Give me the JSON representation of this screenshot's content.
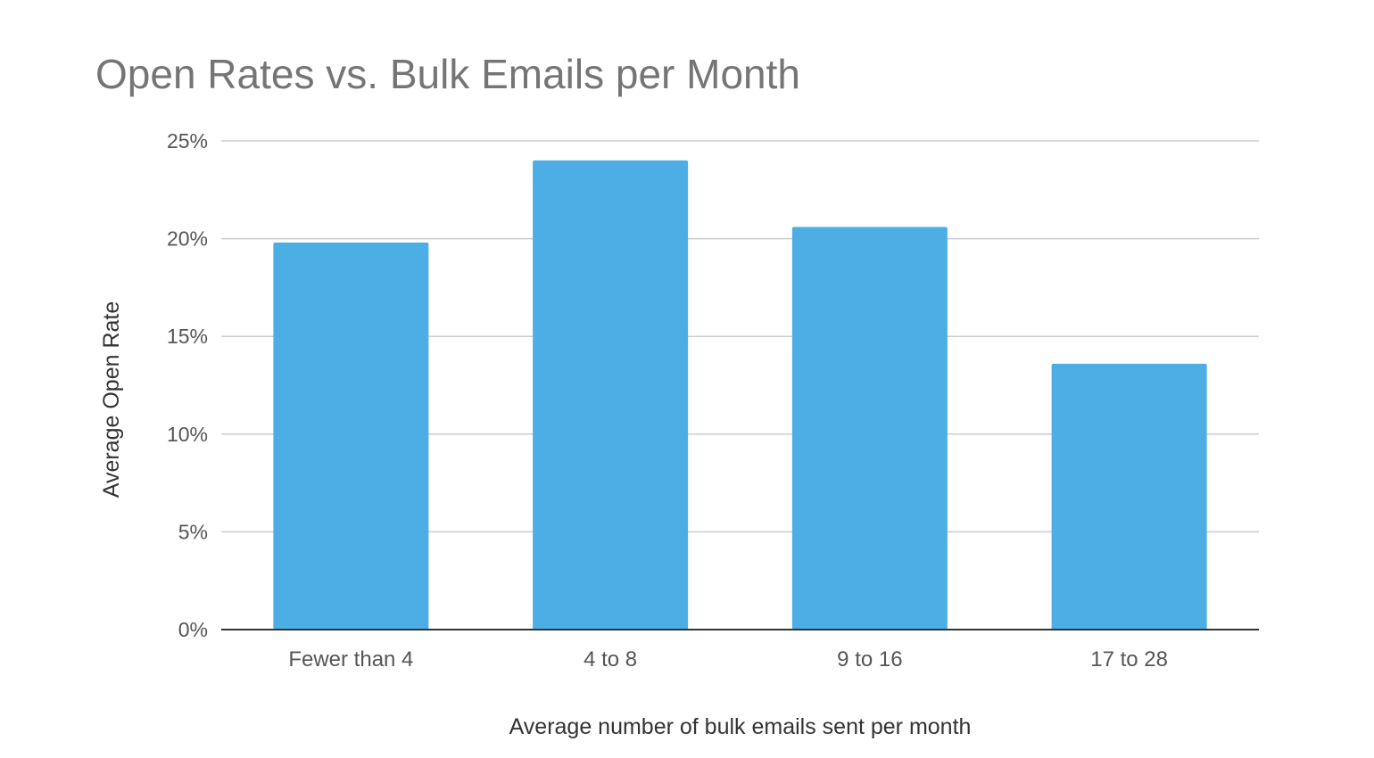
{
  "chart_data": {
    "type": "bar",
    "title": "Open Rates vs. Bulk Emails per Month",
    "xlabel": "Average number of bulk emails sent per month",
    "ylabel": "Average Open Rate",
    "categories": [
      "Fewer than 4",
      "4 to 8",
      "9 to 16",
      "17 to 28"
    ],
    "values": [
      19.8,
      24.0,
      20.6,
      13.6
    ],
    "value_unit": "%",
    "ylim": [
      0,
      25
    ],
    "yticks": [
      0,
      5,
      10,
      15,
      20,
      25
    ],
    "ytick_labels": [
      "0%",
      "5%",
      "10%",
      "15%",
      "20%",
      "25%"
    ],
    "grid": true,
    "legend": "none",
    "colors": {
      "bar": "#4daee5",
      "grid": "#cccccc",
      "axis": "#333333",
      "text": "#555555",
      "title": "#757575"
    }
  }
}
